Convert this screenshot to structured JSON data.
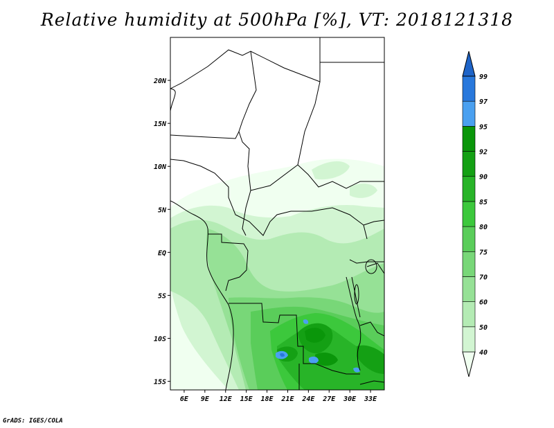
{
  "title": "Relative humidity at 500hPa [%], VT: 2018121318",
  "credit": "GrADS: IGES/COLA",
  "map": {
    "lat_range": [
      -16,
      25
    ],
    "lon_range": [
      4,
      35
    ],
    "lat_ticks": [
      {
        "value": 20,
        "label": "20N"
      },
      {
        "value": 15,
        "label": "15N"
      },
      {
        "value": 10,
        "label": "10N"
      },
      {
        "value": 5,
        "label": "5N"
      },
      {
        "value": 0,
        "label": "EQ"
      },
      {
        "value": -5,
        "label": "5S"
      },
      {
        "value": -10,
        "label": "10S"
      },
      {
        "value": -15,
        "label": "15S"
      }
    ],
    "lon_ticks": [
      {
        "value": 6,
        "label": "6E"
      },
      {
        "value": 9,
        "label": "9E"
      },
      {
        "value": 12,
        "label": "12E"
      },
      {
        "value": 15,
        "label": "15E"
      },
      {
        "value": 18,
        "label": "18E"
      },
      {
        "value": 21,
        "label": "21E"
      },
      {
        "value": 24,
        "label": "24E"
      },
      {
        "value": 27,
        "label": "27E"
      },
      {
        "value": 30,
        "label": "30E"
      },
      {
        "value": 33,
        "label": "33E"
      }
    ]
  },
  "colorbar": {
    "levels": [
      "40",
      "50",
      "60",
      "70",
      "75",
      "80",
      "85",
      "90",
      "92",
      "95",
      "97",
      "99"
    ],
    "colors": [
      "#f0fff0",
      "#d2f5d2",
      "#b4ebb4",
      "#96e196",
      "#78d778",
      "#5acd5a",
      "#3cc83c",
      "#28b428",
      "#14a014",
      "#0a960a",
      "#4aa0f0",
      "#2878dc",
      "#1e64c8"
    ]
  }
}
